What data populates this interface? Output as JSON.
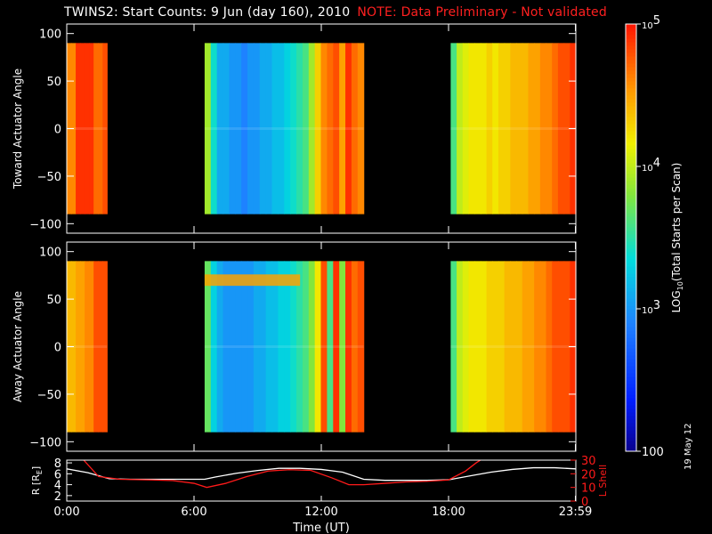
{
  "title": {
    "main": "TWINS2: Start Counts:  9 Jun (day 160), 2010",
    "note": "NOTE: Data Preliminary - Not validated"
  },
  "side_date": "19 May 12",
  "colors": {
    "background": "#000000",
    "axes": "#ffffff",
    "note_red": "#ff2020",
    "r_line": "#ffffff",
    "lshell_line": "#ff1a1a"
  },
  "chart_data": [
    {
      "type": "heatmap",
      "panel": "top",
      "ylabel": "Toward Actuator Angle",
      "ylim": [
        -110,
        110
      ],
      "yticks": [
        "100",
        "50",
        "0",
        "−50",
        "−100"
      ],
      "ytick_values": [
        100,
        50,
        0,
        -50,
        -100
      ],
      "data_ylim": [
        -90,
        90
      ],
      "xlim": [
        0,
        24
      ],
      "blocks": [
        {
          "start": 0.0,
          "end": 1.9,
          "levels": [
            4.6,
            4.6,
            4.9,
            4.9,
            4.9,
            4.9,
            4.7,
            4.7,
            4.8
          ]
        },
        {
          "start": 6.5,
          "end": 14.0,
          "levels": [
            3.9,
            3.4,
            3.1,
            3.1,
            3.0,
            3.0,
            2.9,
            3.0,
            3.0,
            3.1,
            3.1,
            3.2,
            3.2,
            3.3,
            3.4,
            3.5,
            3.6,
            3.9,
            4.3,
            4.6,
            4.7,
            4.8,
            4.5,
            4.9,
            4.7,
            4.6
          ]
        },
        {
          "start": 18.1,
          "end": 24.0,
          "levels": [
            3.6,
            4.0,
            4.1,
            4.2,
            4.2,
            4.2,
            4.3,
            4.2,
            4.3,
            4.3,
            4.4,
            4.4,
            4.4,
            4.5,
            4.5,
            4.6,
            4.6,
            4.7,
            4.8,
            4.8,
            4.9
          ]
        }
      ]
    },
    {
      "type": "heatmap",
      "panel": "middle",
      "ylabel": "Away Actuator Angle",
      "ylim": [
        -110,
        110
      ],
      "yticks": [
        "100",
        "50",
        "0",
        "−50",
        "−100"
      ],
      "ytick_values": [
        100,
        50,
        0,
        -50,
        -100
      ],
      "data_ylim": [
        -90,
        90
      ],
      "xlim": [
        0,
        24
      ],
      "blocks": [
        {
          "start": 0.0,
          "end": 1.9,
          "levels": [
            4.4,
            4.4,
            4.5,
            4.5,
            4.6,
            4.6,
            4.8,
            4.8,
            4.8
          ]
        },
        {
          "start": 6.5,
          "end": 14.0,
          "levels": [
            3.7,
            3.3,
            3.1,
            3.0,
            3.0,
            3.0,
            3.0,
            3.0,
            3.1,
            3.1,
            3.2,
            3.2,
            3.3,
            3.3,
            3.4,
            3.5,
            3.6,
            3.8,
            4.2,
            4.8,
            3.6,
            4.9,
            3.8,
            4.9,
            4.7,
            4.8
          ]
        },
        {
          "start": 18.1,
          "end": 24.0,
          "levels": [
            3.6,
            4.0,
            4.1,
            4.2,
            4.2,
            4.2,
            4.3,
            4.3,
            4.3,
            4.4,
            4.4,
            4.4,
            4.5,
            4.5,
            4.6,
            4.6,
            4.7,
            4.8,
            4.8,
            4.8,
            4.9
          ]
        }
      ],
      "feature": {
        "start": 6.5,
        "end": 11.0,
        "angle": 70,
        "level": 4.5
      }
    },
    {
      "type": "line",
      "panel": "bottom",
      "xlabel": "Time (UT)",
      "ylabel_left": "R [R",
      "ylabel_left_sub": "E",
      "ylabel_left_close": "]",
      "ylabel_right": "L Shell",
      "xlim": [
        0,
        24
      ],
      "xticks": [
        "0:00",
        "6:00",
        "12:00",
        "18:00",
        "23:59"
      ],
      "xtick_values": [
        0,
        6,
        12,
        18,
        23.98
      ],
      "ylim_left": [
        1,
        8.5
      ],
      "yticks_left": [
        "8",
        "6",
        "4",
        "2"
      ],
      "ytick_values_left": [
        8,
        6,
        4,
        2
      ],
      "ylim_right": [
        0,
        30
      ],
      "yticks_right": [
        "30",
        "20",
        "10",
        "0"
      ],
      "ytick_values_right": [
        30,
        20,
        10,
        0
      ],
      "series": [
        {
          "axis": "left",
          "x": [
            0,
            1,
            2,
            3,
            4,
            5,
            6.5,
            7,
            8,
            9,
            10,
            11,
            12,
            13,
            14,
            15,
            16,
            17,
            18,
            19,
            20,
            21,
            22,
            23,
            24
          ],
          "y": [
            6.9,
            6.2,
            5.1,
            5.0,
            5.0,
            5.0,
            5.0,
            5.4,
            6.1,
            6.6,
            7.0,
            7.0,
            6.8,
            6.3,
            5.0,
            4.8,
            4.8,
            4.8,
            4.9,
            5.6,
            6.3,
            6.8,
            7.1,
            7.1,
            6.9
          ]
        },
        {
          "axis": "right",
          "x": [
            0,
            0.8,
            1.5,
            2.5,
            4,
            5,
            6,
            6.6,
            7.5,
            8.5,
            9.5,
            10.5,
            11.5,
            12.5,
            13.3,
            14,
            15,
            16,
            17,
            18,
            18.8,
            19.3,
            19.6
          ],
          "y": [
            32,
            30,
            18,
            16,
            15.5,
            15,
            13,
            10,
            13,
            18,
            22,
            23,
            22.5,
            17,
            12,
            12,
            13,
            14,
            14.5,
            15.5,
            22,
            28,
            31
          ]
        }
      ]
    }
  ],
  "colorbar": {
    "label": "LOG",
    "label_sub": "10",
    "label_rest": "(Total Starts per Scan)",
    "range": [
      2,
      5
    ],
    "ticks": [
      {
        "value": 5,
        "base": "10",
        "exp": "5"
      },
      {
        "value": 4,
        "base": "10",
        "exp": "4"
      },
      {
        "value": 3,
        "base": "10",
        "exp": "3"
      },
      {
        "value": 2,
        "base": "100",
        "exp": ""
      }
    ]
  }
}
